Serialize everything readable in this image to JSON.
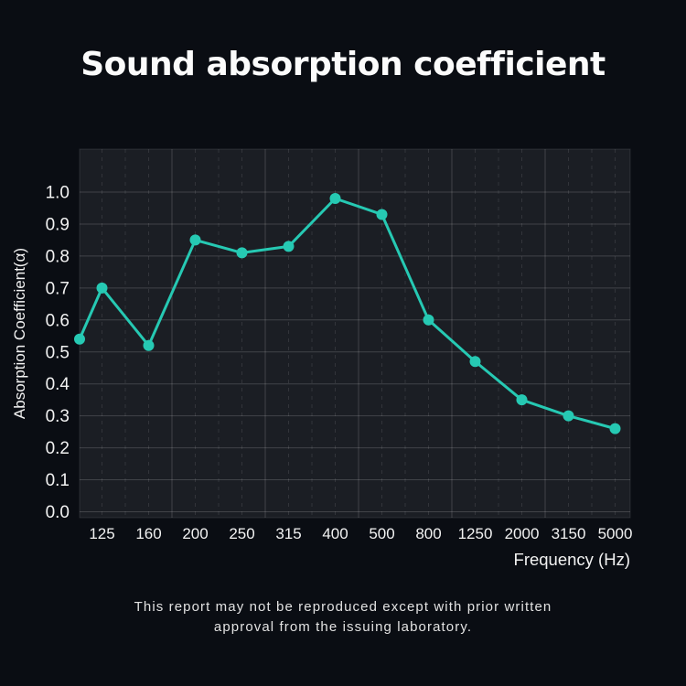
{
  "page": {
    "background": "#0a0d13",
    "title": "Sound absorption coefficient",
    "footer": {
      "line1": "This report may not be reproduced except with prior written",
      "line2": "approval from the issuing laboratory."
    }
  },
  "chart_data": {
    "type": "line",
    "title": "Sound absorption coefficient",
    "xlabel": "Frequency (Hz)",
    "ylabel": "Absorption Coefficient(α)",
    "x_tick_labels": [
      "125",
      "160",
      "200",
      "250",
      "315",
      "400",
      "500",
      "800",
      "1250",
      "2000",
      "3150",
      "5000"
    ],
    "y_tick_labels": [
      "0.0",
      "0.1",
      "0.2",
      "0.3",
      "0.4",
      "0.5",
      "0.6",
      "0.7",
      "0.8",
      "0.9",
      "1.0"
    ],
    "ylim": [
      0.0,
      1.0
    ],
    "first_point_unlabeled_at_left_edge": true,
    "series": [
      {
        "name": "absorption-coefficient",
        "values": [
          0.54,
          0.7,
          0.52,
          0.85,
          0.81,
          0.83,
          0.98,
          0.93,
          0.6,
          0.47,
          0.35,
          0.3,
          0.26
        ]
      }
    ],
    "grid": {
      "major": "solid",
      "minor_vertical": "dashed",
      "legend": "none"
    },
    "colors": {
      "line": "#26c9b3",
      "marker": "#26c9b3",
      "plot_background": "#1b1e24",
      "grid_major": "rgba(255,255,255,0.17)",
      "grid_minor": "rgba(255,255,255,0.10)",
      "tick_label": "#f2f2f2",
      "axis_title": "#f2f2f2"
    }
  }
}
